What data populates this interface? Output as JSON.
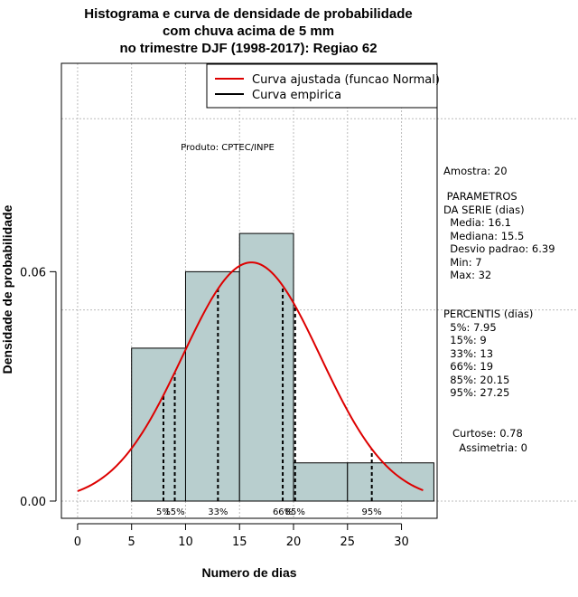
{
  "chart_data": {
    "type": "histogram",
    "title_lines": [
      "Histograma e curva de densidade de probabilidade",
      "com chuva acima de 5 mm",
      "no trimestre DJF (1998-2017): Regiao 62"
    ],
    "xlabel": "Numero de dias",
    "ylabel": "Densidade de probabilidade",
    "xlim": [
      -1.5,
      33.3
    ],
    "ylim": [
      -0.0045,
      0.1145
    ],
    "x_ticks": [
      0,
      5,
      10,
      15,
      20,
      25,
      30
    ],
    "x_tick_labels": [
      "0",
      "5",
      "10",
      "15",
      "20",
      "25",
      "30"
    ],
    "y_ticks": [
      0.0,
      0.06
    ],
    "y_tick_labels": [
      "0.00",
      "0.06"
    ],
    "grid_x": [
      0,
      5,
      10,
      15,
      20,
      25,
      30
    ],
    "grid_y": [
      0.0,
      0.1
    ],
    "grid_y_extra": 0.05,
    "bar_color": "#b8cece",
    "curve_color": "#dd0000",
    "bins": [
      {
        "x0": 5,
        "x1": 10,
        "density": 0.04
      },
      {
        "x0": 10,
        "x1": 15,
        "density": 0.06
      },
      {
        "x0": 15,
        "x1": 20,
        "density": 0.07
      },
      {
        "x0": 20,
        "x1": 25,
        "density": 0.01
      },
      {
        "x0": 25,
        "x1": 33,
        "density": 0.01
      }
    ],
    "normal_fit": {
      "mean": 16.1,
      "sd": 6.39,
      "x_from": 0,
      "x_to": 32
    },
    "percentiles": [
      {
        "value": 7.95,
        "label": "5%"
      },
      {
        "value": 9,
        "label": "15%"
      },
      {
        "value": 13,
        "label": "33%"
      },
      {
        "value": 19,
        "label": "66%"
      },
      {
        "value": 20.15,
        "label": "85%"
      },
      {
        "value": 27.25,
        "label": "95%"
      }
    ],
    "legend": [
      {
        "label": "Curva ajustada (funcao Normal)",
        "color": "#dd0000"
      },
      {
        "label": "Curva empirica",
        "color": "#000000"
      }
    ],
    "product_note": "Produto: CPTEC/INPE"
  },
  "side_panel": {
    "amostra": "Amostra: 20",
    "parametros_title": " PARAMETROS",
    "parametros_subtitle": "DA SERIE (dias)",
    "media": "  Media: 16.1",
    "mediana": "  Mediana: 15.5",
    "desvio": "  Desvio padrao: 6.39",
    "min": "  Min: 7",
    "max": "  Max: 32",
    "percentis_title": "PERCENTIS (dias)",
    "p5": "  5%: 7.95",
    "p15": "  15%: 9",
    "p33": "  33%: 13",
    "p66": "  66%: 19",
    "p85": "  85%: 20.15",
    "p95": "  95%: 27.25",
    "curtose": "Curtose: 0.78",
    "assimetria": "  Assimetria: 0"
  }
}
